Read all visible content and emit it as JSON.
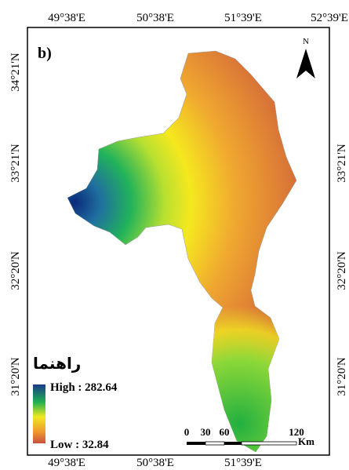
{
  "panel_label": "b)",
  "north_label": "N",
  "top_longitudes": [
    "49°38'E",
    "50°38'E",
    "51°39'E",
    "52°39'E"
  ],
  "bottom_longitudes": [
    "49°38'E",
    "50°38'E",
    "51°39'E"
  ],
  "left_latitudes": [
    "34°21'N",
    "33°21'N",
    "32°20'N",
    "31°20'N"
  ],
  "right_latitudes": [
    "33°21'N",
    "32°20'N",
    "31°20'N"
  ],
  "legend": {
    "title": "راهنما",
    "high_label": "High : 282.64",
    "low_label": "Low : 32.84"
  },
  "scale_bar": {
    "labels": [
      "0",
      "30",
      "60",
      "120"
    ],
    "unit": "Km"
  }
}
